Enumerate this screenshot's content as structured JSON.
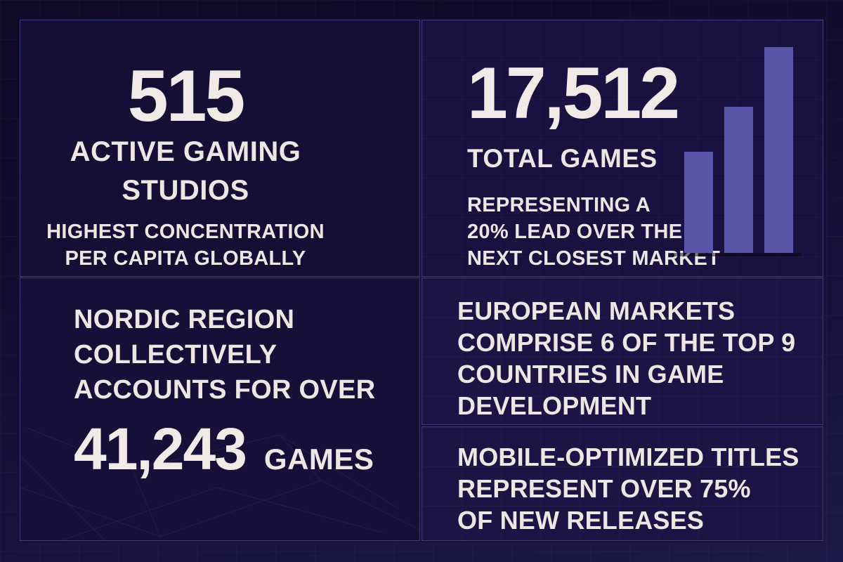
{
  "theme": {
    "background_top": "#0f0a26",
    "background_bottom": "#1e1848",
    "panel_background": "#191140",
    "border_color": "#3b3a82",
    "text_color": "#ece7e2",
    "bar_color": "#5b57a8"
  },
  "panels": {
    "studios": {
      "value": "515",
      "title_line1": "ACTIVE GAMING",
      "title_line2": "STUDIOS",
      "sub_line1": "HIGHEST CONCENTRATION",
      "sub_line2": "PER CAPITA GLOBALLY"
    },
    "games": {
      "value": "17,512",
      "title": "TOTAL GAMES",
      "sub_line1": "REPRESENTING A",
      "sub_line2": "20% LEAD OVER THE",
      "sub_line3": "NEXT CLOSEST MARKET"
    },
    "nordic": {
      "line1": "NORDIC REGION",
      "line2": "COLLECTIVELY",
      "line3": "ACCOUNTS FOR OVER",
      "value": "41,243",
      "value_suffix": "GAMES"
    },
    "european": {
      "line1": "EUROPEAN MARKETS",
      "line2": "COMPRISE 6 OF THE TOP 9",
      "line3": "COUNTRIES IN GAME",
      "line4": "DEVELOPMENT"
    },
    "mobile": {
      "line1": "MOBILE-OPTIMIZED TITLES",
      "line2": "REPRESENT OVER 75%",
      "line3": "OF NEW RELEASES"
    }
  },
  "chart_data": {
    "type": "bar",
    "title": "",
    "xlabel": "",
    "ylabel": "",
    "categories": [
      "bar-1",
      "bar-2",
      "bar-3"
    ],
    "values": [
      49,
      71,
      100
    ],
    "ylim": [
      0,
      100
    ],
    "grid": true,
    "legend_position": "none",
    "note": "decorative ascending bar graphic in the TOTAL GAMES panel; no axis ticks or data labels are shown, heights are percentages of the tallest bar"
  }
}
